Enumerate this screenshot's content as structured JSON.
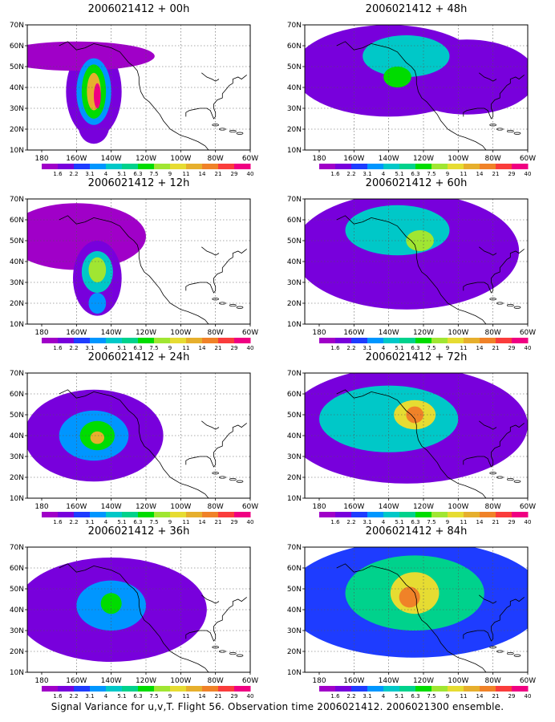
{
  "panels": [
    {
      "title": "2006021412 + 00h",
      "blobs": [
        {
          "x": 150,
          "y": 38,
          "rx": 16,
          "ry": 22,
          "level": 1
        },
        {
          "x": 150,
          "y": 22,
          "rx": 9,
          "ry": 9,
          "level": 1
        },
        {
          "x": 160,
          "y": 55,
          "rx": 45,
          "ry": 7,
          "level": 0
        },
        {
          "x": 150,
          "y": 38,
          "rx": 10,
          "ry": 16,
          "level": 3
        },
        {
          "x": 150,
          "y": 38,
          "rx": 7,
          "ry": 13,
          "level": 6
        },
        {
          "x": 150,
          "y": 38,
          "rx": 4,
          "ry": 9,
          "level": 9
        },
        {
          "x": 148,
          "y": 36,
          "rx": 2,
          "ry": 6,
          "level": 12
        }
      ]
    },
    {
      "title": "2006021412 + 48h",
      "blobs": [
        {
          "x": 140,
          "y": 48,
          "rx": 55,
          "ry": 22,
          "level": 1
        },
        {
          "x": 95,
          "y": 45,
          "rx": 40,
          "ry": 18,
          "level": 1
        },
        {
          "x": 130,
          "y": 55,
          "rx": 25,
          "ry": 10,
          "level": 4
        },
        {
          "x": 135,
          "y": 45,
          "rx": 8,
          "ry": 5,
          "level": 6
        }
      ]
    },
    {
      "title": "2006021412 + 12h",
      "blobs": [
        {
          "x": 160,
          "y": 52,
          "rx": 40,
          "ry": 16,
          "level": 0
        },
        {
          "x": 148,
          "y": 32,
          "rx": 14,
          "ry": 18,
          "level": 1
        },
        {
          "x": 148,
          "y": 35,
          "rx": 9,
          "ry": 10,
          "level": 4
        },
        {
          "x": 148,
          "y": 36,
          "rx": 5,
          "ry": 6,
          "level": 7
        },
        {
          "x": 148,
          "y": 20,
          "rx": 5,
          "ry": 5,
          "level": 3
        }
      ]
    },
    {
      "title": "2006021412 + 60h",
      "blobs": [
        {
          "x": 130,
          "y": 45,
          "rx": 65,
          "ry": 28,
          "level": 1
        },
        {
          "x": 135,
          "y": 55,
          "rx": 30,
          "ry": 12,
          "level": 4
        },
        {
          "x": 122,
          "y": 50,
          "rx": 8,
          "ry": 5,
          "level": 7
        }
      ]
    },
    {
      "title": "2006021412 + 24h",
      "blobs": [
        {
          "x": 150,
          "y": 40,
          "rx": 40,
          "ry": 22,
          "level": 1
        },
        {
          "x": 150,
          "y": 40,
          "rx": 20,
          "ry": 12,
          "level": 3
        },
        {
          "x": 148,
          "y": 40,
          "rx": 10,
          "ry": 7,
          "level": 6
        },
        {
          "x": 148,
          "y": 39,
          "rx": 4,
          "ry": 3,
          "level": 9
        }
      ]
    },
    {
      "title": "2006021412 + 72h",
      "blobs": [
        {
          "x": 130,
          "y": 45,
          "rx": 70,
          "ry": 28,
          "level": 1
        },
        {
          "x": 140,
          "y": 48,
          "rx": 40,
          "ry": 16,
          "level": 4
        },
        {
          "x": 125,
          "y": 50,
          "rx": 12,
          "ry": 7,
          "level": 8
        },
        {
          "x": 125,
          "y": 50,
          "rx": 5,
          "ry": 4,
          "level": 10
        }
      ]
    },
    {
      "title": "2006021412 + 36h",
      "blobs": [
        {
          "x": 140,
          "y": 40,
          "rx": 55,
          "ry": 25,
          "level": 1
        },
        {
          "x": 140,
          "y": 42,
          "rx": 20,
          "ry": 12,
          "level": 3
        },
        {
          "x": 140,
          "y": 43,
          "rx": 6,
          "ry": 5,
          "level": 6
        }
      ]
    },
    {
      "title": "2006021412 + 84h",
      "blobs": [
        {
          "x": 125,
          "y": 45,
          "rx": 75,
          "ry": 28,
          "level": 2
        },
        {
          "x": 125,
          "y": 48,
          "rx": 40,
          "ry": 18,
          "level": 5
        },
        {
          "x": 125,
          "y": 48,
          "rx": 14,
          "ry": 10,
          "level": 8
        },
        {
          "x": 128,
          "y": 46,
          "rx": 6,
          "ry": 5,
          "level": 10
        }
      ]
    }
  ],
  "lat_labels": [
    "70N",
    "60N",
    "50N",
    "40N",
    "30N",
    "20N",
    "10N"
  ],
  "lon_labels": [
    "180",
    "160W",
    "140W",
    "120W",
    "100W",
    "80W",
    "60W"
  ],
  "colorbar": {
    "labels": [
      "1.6",
      "2.2",
      "3.1",
      "4",
      "5.1",
      "6.3",
      "7.5",
      "9",
      "11",
      "14",
      "21",
      "29",
      "40"
    ],
    "colors": [
      "#a000c8",
      "#7800dc",
      "#1e3cff",
      "#0096ff",
      "#00c8c8",
      "#00d28c",
      "#00dc00",
      "#a0e632",
      "#e6dc32",
      "#e6af2d",
      "#f08228",
      "#fa3c3c",
      "#f00082"
    ]
  },
  "caption": "Signal Variance for u,v,T. Flight 56. Observation time 2006021412. 2006021300 ensemble."
}
